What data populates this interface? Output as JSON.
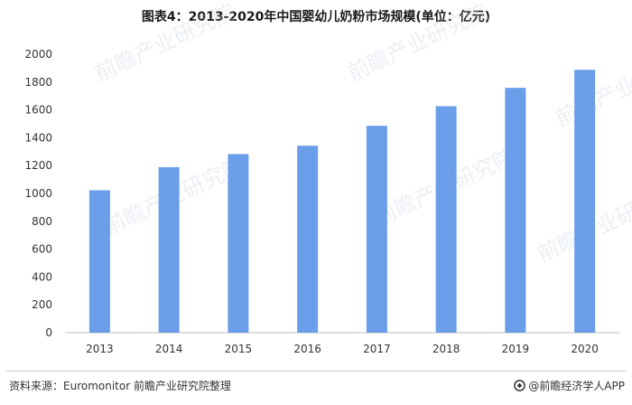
{
  "title": "图表4：2013-2020年中国婴幼儿奶粉市场规模(单位：亿元)",
  "footer": {
    "source": "资料来源：Euromonitor 前瞻产业研究院整理",
    "brand": "@前瞻经济学人APP"
  },
  "watermark_text": "前瞻产业研究院",
  "colors": {
    "bar": "#6b9ee8",
    "axis": "#bfbfbf",
    "text": "#333333"
  },
  "chart_data": {
    "type": "bar",
    "title": "图表4：2013-2020年中国婴幼儿奶粉市场规模(单位：亿元)",
    "xlabel": "",
    "ylabel": "",
    "categories": [
      "2013",
      "2014",
      "2015",
      "2016",
      "2017",
      "2018",
      "2019",
      "2020"
    ],
    "values": [
      1023,
      1189,
      1283,
      1343,
      1486,
      1627,
      1759,
      1888
    ],
    "ylim": [
      0,
      2000
    ],
    "yticks": [
      0,
      200,
      400,
      600,
      800,
      1000,
      1200,
      1400,
      1600,
      1800,
      2000
    ],
    "grid": false,
    "legend": "none"
  }
}
